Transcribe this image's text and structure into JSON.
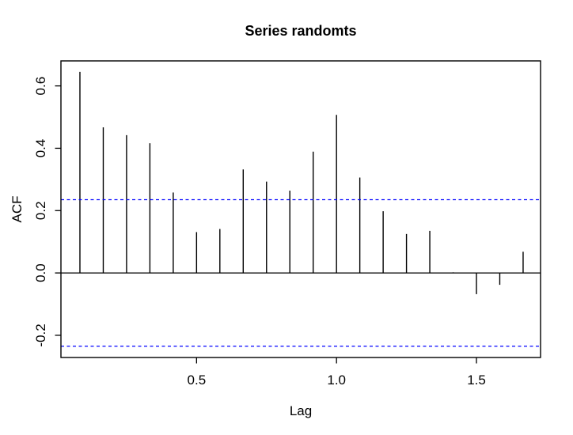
{
  "window": {
    "background": "#ffffff"
  },
  "chart_data": {
    "type": "bar",
    "subtype": "acf-stem-plot",
    "title": "Series randomts",
    "xlabel": "Lag",
    "ylabel": "ACF",
    "x": [
      0.0833,
      0.1667,
      0.25,
      0.3333,
      0.4167,
      0.5,
      0.5833,
      0.6667,
      0.75,
      0.8333,
      0.9167,
      1.0,
      1.0833,
      1.1667,
      1.25,
      1.3333,
      1.4167,
      1.5,
      1.5833,
      1.6667
    ],
    "values": [
      0.645,
      0.467,
      0.442,
      0.416,
      0.258,
      0.131,
      0.141,
      0.332,
      0.293,
      0.264,
      0.389,
      0.507,
      0.306,
      0.198,
      0.125,
      0.135,
      0.002,
      -0.068,
      -0.038,
      0.068
    ],
    "zero_line": 0,
    "confidence_lines": [
      0.235,
      -0.235
    ],
    "xticks": {
      "values": [
        0.5,
        1.0,
        1.5
      ],
      "labels": [
        "0.5",
        "1.0",
        "1.5"
      ]
    },
    "yticks": {
      "values": [
        -0.2,
        0.0,
        0.2,
        0.4,
        0.6
      ],
      "labels": [
        "-0.2",
        "0.0",
        "0.2",
        "0.4",
        "0.6"
      ]
    },
    "xlim": [
      0.0155,
      1.729
    ],
    "ylim": [
      -0.2712,
      0.6802
    ],
    "grid": false,
    "colors": {
      "spike": "#000000",
      "axis": "#000000",
      "confidence": "#0000ff",
      "text": "#000000",
      "background": "#ffffff"
    }
  }
}
